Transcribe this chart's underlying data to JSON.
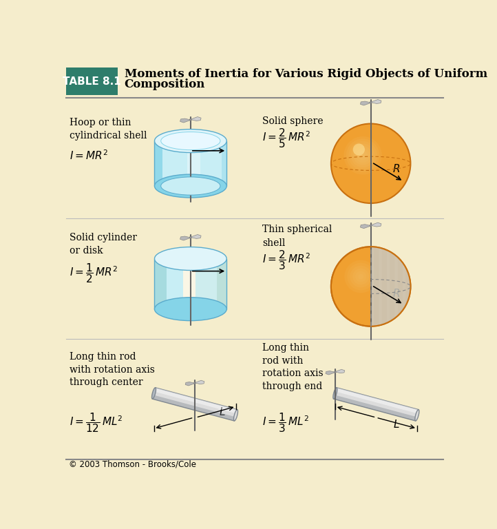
{
  "bg_color": "#F5EDCC",
  "header_bg": "#2E7D6B",
  "header_text_color": "#FFFFFF",
  "header_label": "TABLE 8.1",
  "header_title_line1": "Moments of Inertia for Various Rigid Objects of Uniform",
  "header_title_line2": "Composition",
  "footer_text": "© 2003 Thomson - Brooks/Cole",
  "cylinder_color_light": "#C8EEF5",
  "cylinder_color_mid": "#85D4E8",
  "cylinder_color_dark": "#5AABCC",
  "cylinder_top_light": "#E0F5FA",
  "sphere_color_light": "#F8C878",
  "sphere_color_mid": "#F0A030",
  "sphere_color_dark": "#C87010",
  "sphere_shell_gray": "#C8C8C8",
  "rod_color_light": "#DCDCDC",
  "rod_color_mid": "#B0B8C0",
  "rod_color_dark": "#808890",
  "rot_symbol_color": "#AAAAAA",
  "axis_color": "#666666",
  "text_color": "#000000",
  "divider_color": "#999999"
}
